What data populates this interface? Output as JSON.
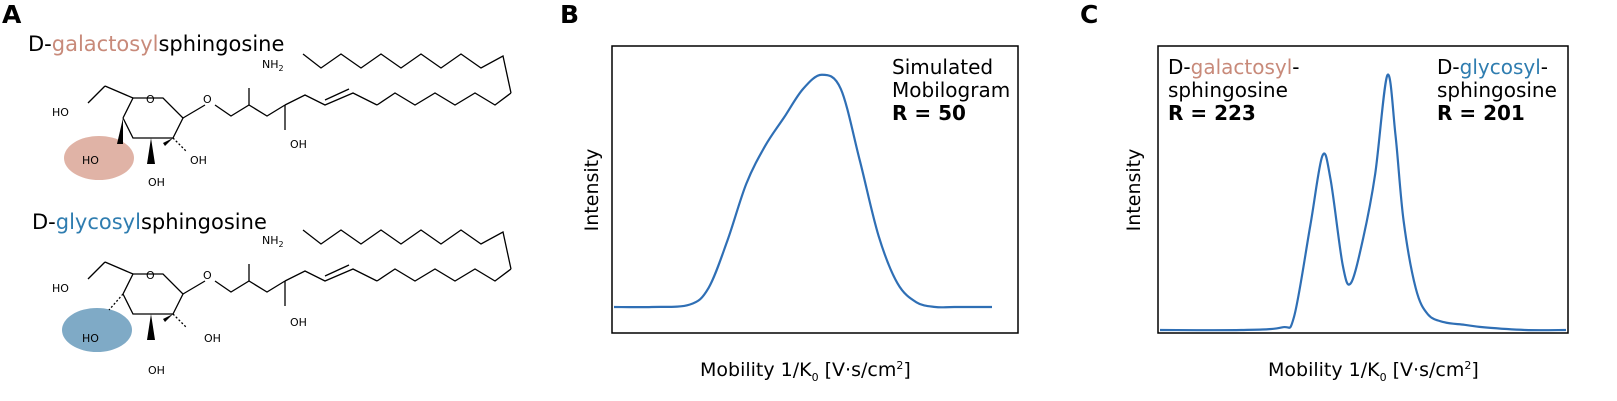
{
  "panels": {
    "A": {
      "letter": "A",
      "compound1": {
        "prefix": "D-",
        "highlight": "galactosyl",
        "suffix": "sphingosine"
      },
      "compound2": {
        "prefix": "D-",
        "highlight": "glycosyl",
        "suffix": "sphingosine"
      },
      "atoms": {
        "ho": "HO",
        "oh": "OH",
        "o": "O",
        "nh2": "NH",
        "nh2_sub": "2"
      }
    },
    "B": {
      "letter": "B",
      "annotation": {
        "line1": "Simulated",
        "line2": "Mobilogram",
        "line3": "R = 50"
      }
    },
    "C": {
      "letter": "C",
      "left_label": {
        "prefix": "D-",
        "highlight": "galactosyl",
        "dash": "-",
        "line2": "sphingosine",
        "res": "R = 223"
      },
      "right_label": {
        "prefix": "D-",
        "highlight": "glycosyl",
        "dash": "-",
        "line2": "sphingosine",
        "res": "R = 201"
      }
    }
  },
  "axes": {
    "ylabel": "Intensity",
    "xlabel_main": "Mobility 1/K",
    "xlabel_sub": "0",
    "xlabel_units": " [V·s/cm",
    "xlabel_sup": "2",
    "xlabel_close": "]"
  },
  "colors": {
    "galactosyl": "#c88a7a",
    "glycosyl": "#2f7db0",
    "trace": "#2f6fb5",
    "gal_ellipse": "#e0b3a6",
    "glc_ellipse": "#7faac6"
  },
  "chart_data": [
    {
      "type": "line",
      "panel": "B",
      "xlabel": "Mobility 1/K0 [V·s/cm2]",
      "ylabel": "Intensity",
      "title": "",
      "series": [
        {
          "x": [
            0,
            0.1,
            0.2,
            0.25,
            0.3,
            0.35,
            0.4,
            0.45,
            0.5,
            0.55,
            0.6,
            0.65,
            0.7,
            0.75,
            0.8,
            0.85,
            0.9,
            1
          ],
          "values": [
            0,
            0,
            0.01,
            0.08,
            0.28,
            0.52,
            0.68,
            0.8,
            0.92,
            0.98,
            0.92,
            0.62,
            0.3,
            0.1,
            0.02,
            0,
            0,
            0
          ]
        }
      ]
    },
    {
      "type": "line",
      "panel": "C",
      "xlabel": "Mobility 1/K0 [V·s/cm2]",
      "ylabel": "Intensity",
      "title": "",
      "series": [
        {
          "x": [
            0,
            0.2,
            0.3,
            0.33,
            0.37,
            0.4,
            0.42,
            0.45,
            0.47,
            0.5,
            0.53,
            0.56,
            0.58,
            0.6,
            0.63,
            0.66,
            0.7,
            0.75,
            0.8,
            0.9,
            1
          ],
          "values": [
            0,
            0,
            0.01,
            0.05,
            0.4,
            0.67,
            0.58,
            0.25,
            0.18,
            0.35,
            0.6,
            0.98,
            0.75,
            0.42,
            0.16,
            0.06,
            0.03,
            0.02,
            0.01,
            0,
            0
          ]
        }
      ]
    }
  ]
}
